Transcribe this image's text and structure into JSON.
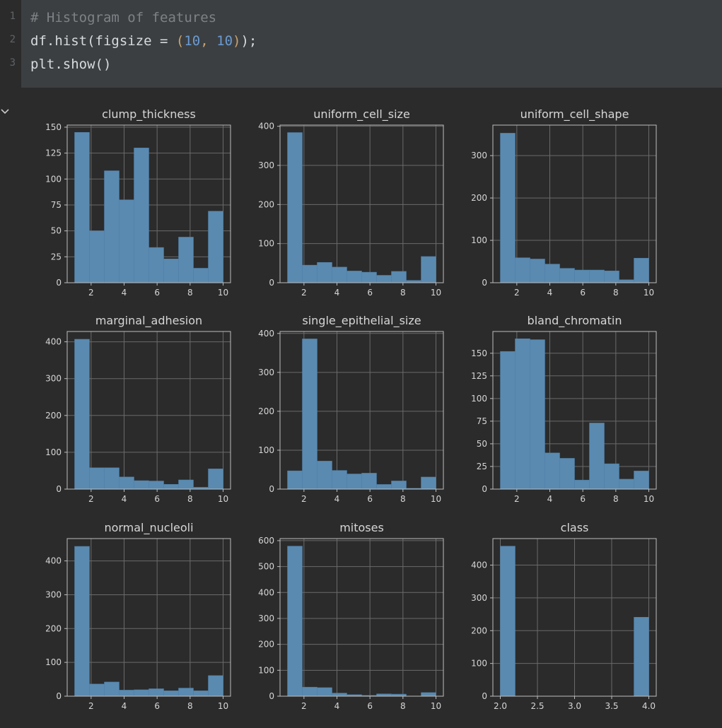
{
  "editor": {
    "line_numbers": [
      "1",
      "2",
      "3"
    ],
    "lines": [
      [
        {
          "t": "# Histogram of features",
          "k": "comment"
        }
      ],
      [
        {
          "t": "df.hist(figsize = ",
          "k": "plain"
        },
        {
          "t": "(",
          "k": "punct"
        },
        {
          "t": "10",
          "k": "num"
        },
        {
          "t": ", ",
          "k": "punct"
        },
        {
          "t": "10",
          "k": "num"
        },
        {
          "t": ")",
          "k": "punct"
        },
        {
          "t": ");",
          "k": "plain"
        }
      ],
      [
        {
          "t": "plt.show()",
          "k": "plain"
        }
      ]
    ]
  },
  "colors": {
    "bar": "#5a8ab0",
    "bar_edge": "#4f7fa6",
    "grid": "#6a6a6a",
    "axis": "#bdbdbd",
    "text": "#d6d6d6"
  },
  "chart_data": [
    {
      "type": "bar",
      "title": "clump_thickness",
      "edges": [
        1,
        1.9,
        2.8,
        3.7,
        4.6,
        5.5,
        6.4,
        7.3,
        8.2,
        9.1,
        10
      ],
      "values": [
        145,
        50,
        108,
        80,
        130,
        34,
        23,
        44,
        14,
        69
      ],
      "xlim": [
        0.55,
        10.45
      ],
      "ylim": [
        0,
        152
      ],
      "xticks": [
        2,
        4,
        6,
        8,
        10
      ],
      "xticklabels": [
        "2",
        "4",
        "6",
        "8",
        "10"
      ],
      "yticks": [
        0,
        25,
        50,
        75,
        100,
        125,
        150
      ],
      "yticklabels": [
        "0",
        "25",
        "50",
        "75",
        "100",
        "125",
        "150"
      ]
    },
    {
      "type": "bar",
      "title": "uniform_cell_size",
      "edges": [
        1,
        1.9,
        2.8,
        3.7,
        4.6,
        5.5,
        6.4,
        7.3,
        8.2,
        9.1,
        10
      ],
      "values": [
        384,
        45,
        52,
        40,
        30,
        27,
        19,
        29,
        6,
        67
      ],
      "xlim": [
        0.55,
        10.45
      ],
      "ylim": [
        0,
        403
      ],
      "xticks": [
        2,
        4,
        6,
        8,
        10
      ],
      "xticklabels": [
        "2",
        "4",
        "6",
        "8",
        "10"
      ],
      "yticks": [
        0,
        100,
        200,
        300,
        400
      ],
      "yticklabels": [
        "0",
        "100",
        "200",
        "300",
        "400"
      ]
    },
    {
      "type": "bar",
      "title": "uniform_cell_shape",
      "edges": [
        1,
        1.9,
        2.8,
        3.7,
        4.6,
        5.5,
        6.4,
        7.3,
        8.2,
        9.1,
        10
      ],
      "values": [
        353,
        59,
        56,
        44,
        34,
        30,
        30,
        28,
        7,
        58
      ],
      "xlim": [
        0.55,
        10.45
      ],
      "ylim": [
        0,
        372
      ],
      "xticks": [
        2,
        4,
        6,
        8,
        10
      ],
      "xticklabels": [
        "2",
        "4",
        "6",
        "8",
        "10"
      ],
      "yticks": [
        0,
        100,
        200,
        300
      ],
      "yticklabels": [
        "0",
        "100",
        "200",
        "300"
      ]
    },
    {
      "type": "bar",
      "title": "marginal_adhesion",
      "edges": [
        1,
        1.9,
        2.8,
        3.7,
        4.6,
        5.5,
        6.4,
        7.3,
        8.2,
        9.1,
        10
      ],
      "values": [
        407,
        58,
        58,
        33,
        23,
        22,
        13,
        25,
        5,
        55
      ],
      "xlim": [
        0.55,
        10.45
      ],
      "ylim": [
        0,
        428
      ],
      "xticks": [
        2,
        4,
        6,
        8,
        10
      ],
      "xticklabels": [
        "2",
        "4",
        "6",
        "8",
        "10"
      ],
      "yticks": [
        0,
        100,
        200,
        300,
        400
      ],
      "yticklabels": [
        "0",
        "100",
        "200",
        "300",
        "400"
      ]
    },
    {
      "type": "bar",
      "title": "single_epithelial_size",
      "edges": [
        1,
        1.9,
        2.8,
        3.7,
        4.6,
        5.5,
        6.4,
        7.3,
        8.2,
        9.1,
        10
      ],
      "values": [
        47,
        386,
        72,
        48,
        39,
        41,
        12,
        21,
        2,
        31
      ],
      "xlim": [
        0.55,
        10.45
      ],
      "ylim": [
        0,
        405
      ],
      "xticks": [
        2,
        4,
        6,
        8,
        10
      ],
      "xticklabels": [
        "2",
        "4",
        "6",
        "8",
        "10"
      ],
      "yticks": [
        0,
        100,
        200,
        300,
        400
      ],
      "yticklabels": [
        "0",
        "100",
        "200",
        "300",
        "400"
      ]
    },
    {
      "type": "bar",
      "title": "bland_chromatin",
      "edges": [
        1,
        1.9,
        2.8,
        3.7,
        4.6,
        5.5,
        6.4,
        7.3,
        8.2,
        9.1,
        10
      ],
      "values": [
        152,
        166,
        165,
        40,
        34,
        10,
        73,
        28,
        11,
        20
      ],
      "xlim": [
        0.55,
        10.45
      ],
      "ylim": [
        0,
        174
      ],
      "xticks": [
        2,
        4,
        6,
        8,
        10
      ],
      "xticklabels": [
        "2",
        "4",
        "6",
        "8",
        "10"
      ],
      "yticks": [
        0,
        25,
        50,
        75,
        100,
        125,
        150
      ],
      "yticklabels": [
        "0",
        "25",
        "50",
        "75",
        "100",
        "125",
        "150"
      ]
    },
    {
      "type": "bar",
      "title": "normal_nucleoli",
      "edges": [
        1,
        1.9,
        2.8,
        3.7,
        4.6,
        5.5,
        6.4,
        7.3,
        8.2,
        9.1,
        10
      ],
      "values": [
        443,
        36,
        42,
        18,
        19,
        22,
        16,
        24,
        16,
        61
      ],
      "xlim": [
        0.55,
        10.45
      ],
      "ylim": [
        0,
        466
      ],
      "xticks": [
        2,
        4,
        6,
        8,
        10
      ],
      "xticklabels": [
        "2",
        "4",
        "6",
        "8",
        "10"
      ],
      "yticks": [
        0,
        100,
        200,
        300,
        400
      ],
      "yticklabels": [
        "0",
        "100",
        "200",
        "300",
        "400"
      ]
    },
    {
      "type": "bar",
      "title": "mitoses",
      "edges": [
        1,
        1.9,
        2.8,
        3.7,
        4.6,
        5.5,
        6.4,
        7.3,
        8.2,
        9.1,
        10
      ],
      "values": [
        579,
        35,
        33,
        12,
        6,
        3,
        9,
        8,
        0,
        14
      ],
      "xlim": [
        0.55,
        10.45
      ],
      "ylim": [
        0,
        608
      ],
      "xticks": [
        2,
        4,
        6,
        8,
        10
      ],
      "xticklabels": [
        "2",
        "4",
        "6",
        "8",
        "10"
      ],
      "yticks": [
        0,
        100,
        200,
        300,
        400,
        500,
        600
      ],
      "yticklabels": [
        "0",
        "100",
        "200",
        "300",
        "400",
        "500",
        "600"
      ]
    },
    {
      "type": "bar",
      "title": "class",
      "edges": [
        2.0,
        2.2,
        2.4,
        2.6,
        2.8,
        3.0,
        3.2,
        3.4,
        3.6,
        3.8,
        4.0
      ],
      "values": [
        458,
        0,
        0,
        0,
        0,
        0,
        0,
        0,
        0,
        241
      ],
      "xlim": [
        1.9,
        4.1
      ],
      "ylim": [
        0,
        481
      ],
      "xticks": [
        2.0,
        2.5,
        3.0,
        3.5,
        4.0
      ],
      "xticklabels": [
        "2.0",
        "2.5",
        "3.0",
        "3.5",
        "4.0"
      ],
      "yticks": [
        0,
        100,
        200,
        300,
        400
      ],
      "yticklabels": [
        "0",
        "100",
        "200",
        "300",
        "400"
      ]
    }
  ]
}
